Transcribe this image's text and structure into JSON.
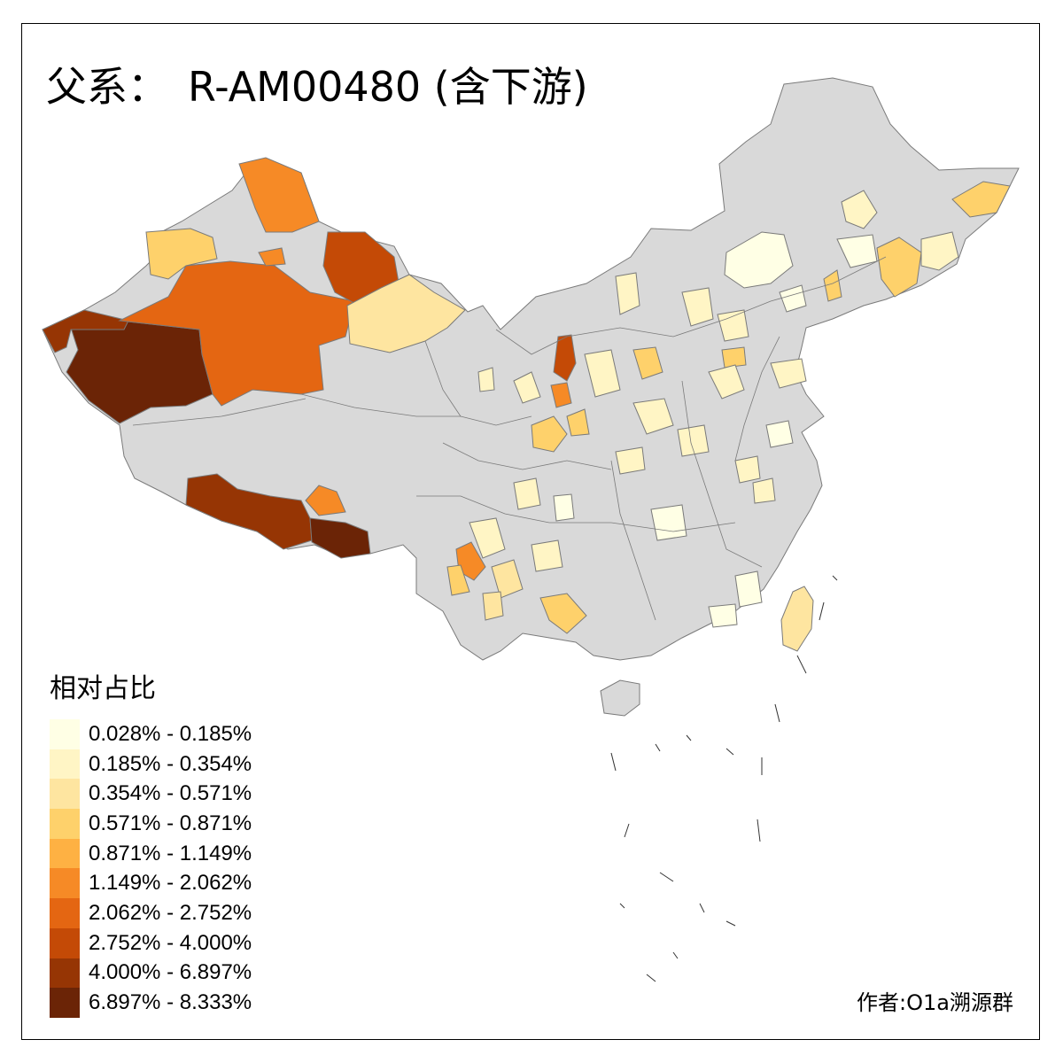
{
  "map": {
    "title_prefix": "父系：",
    "title_main": "R-AM00480 (含下游)",
    "legend_title": "相对占比",
    "author": "作者:O1a溯源群",
    "colors": {
      "no_data": "#d9d9d9",
      "border": "#7a7a7a"
    },
    "legend": [
      {
        "label": "0.028% - 0.185%",
        "color": "#ffffe5"
      },
      {
        "label": "0.185% - 0.354%",
        "color": "#fff5c5"
      },
      {
        "label": "0.354% - 0.571%",
        "color": "#fee5a0"
      },
      {
        "label": "0.571% - 0.871%",
        "color": "#fed16b"
      },
      {
        "label": "0.871% - 1.149%",
        "color": "#feb143"
      },
      {
        "label": "1.149% - 2.062%",
        "color": "#f68a26"
      },
      {
        "label": "2.062% - 2.752%",
        "color": "#e46612"
      },
      {
        "label": "2.752% - 4.000%",
        "color": "#c44a06"
      },
      {
        "label": "4.000% - 6.897%",
        "color": "#963504"
      },
      {
        "label": "6.897% - 8.333%",
        "color": "#6b2406"
      }
    ]
  }
}
